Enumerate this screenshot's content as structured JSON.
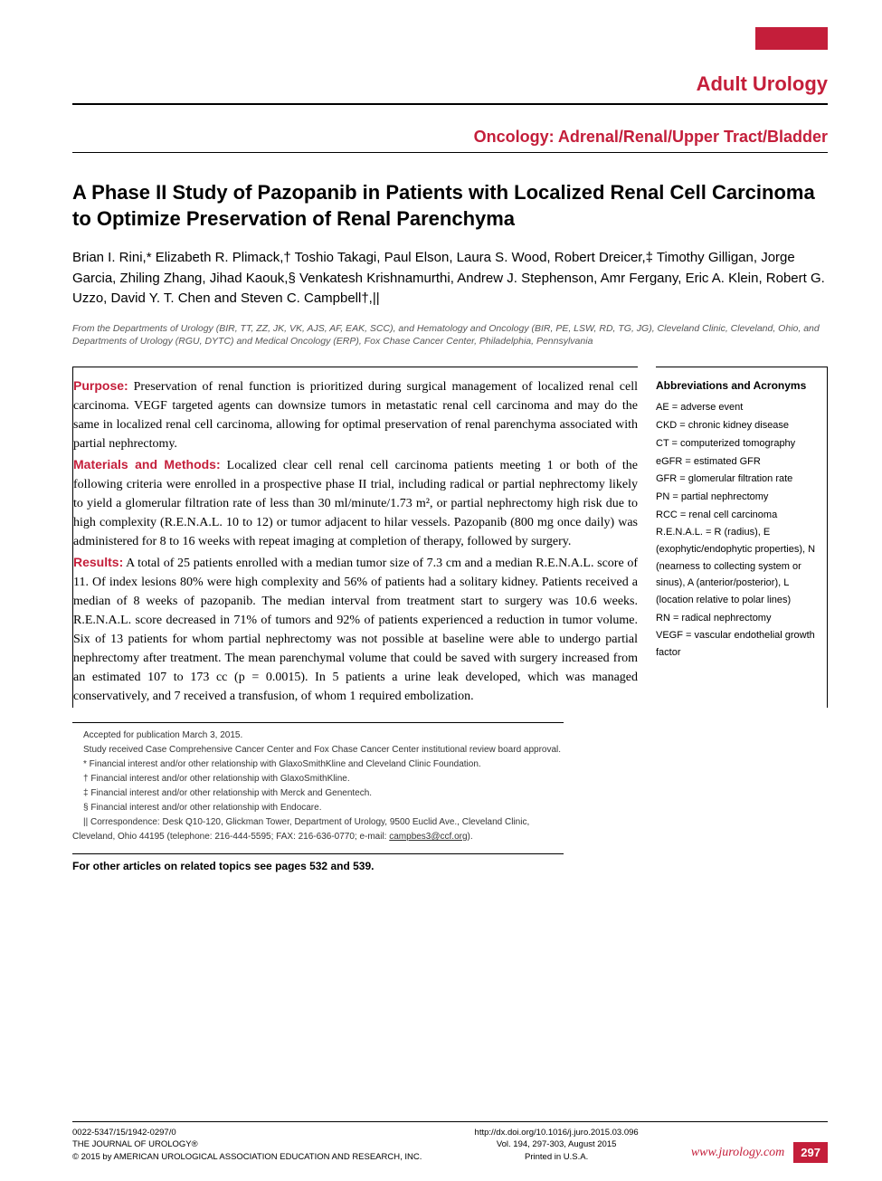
{
  "colors": {
    "accent": "#c41e3a",
    "text": "#000000",
    "footnote_text": "#333333",
    "affiliation_text": "#555555",
    "background": "#ffffff"
  },
  "typography": {
    "body_font": "Arial, Helvetica, sans-serif",
    "serif_font": "Georgia, 'Times New Roman', serif",
    "title_size_pt": 22,
    "abstract_size_pt": 14,
    "sidebar_size_pt": 11,
    "footnote_size_pt": 10
  },
  "header": {
    "section": "Adult Urology",
    "subsection": "Oncology: Adrenal/Renal/Upper Tract/Bladder"
  },
  "article": {
    "title": "A Phase II Study of Pazopanib in Patients with Localized Renal Cell Carcinoma to Optimize Preservation of Renal Parenchyma",
    "authors": "Brian I. Rini,* Elizabeth R. Plimack,† Toshio Takagi, Paul Elson, Laura S. Wood, Robert Dreicer,‡ Timothy Gilligan, Jorge Garcia, Zhiling Zhang, Jihad Kaouk,§ Venkatesh Krishnamurthi, Andrew J. Stephenson, Amr Fergany, Eric A. Klein, Robert G. Uzzo, David Y. T. Chen and Steven C. Campbell†,||",
    "affiliation": "From the Departments of Urology (BIR, TT, ZZ, JK, VK, AJS, AF, EAK, SCC), and Hematology and Oncology (BIR, PE, LSW, RD, TG, JG), Cleveland Clinic, Cleveland, Ohio, and Departments of Urology (RGU, DYTC) and Medical Oncology (ERP), Fox Chase Cancer Center, Philadelphia, Pennsylvania"
  },
  "abstract": {
    "purpose_label": "Purpose:",
    "purpose": " Preservation of renal function is prioritized during surgical management of localized renal cell carcinoma. VEGF targeted agents can downsize tumors in metastatic renal cell carcinoma and may do the same in localized renal cell carcinoma, allowing for optimal preservation of renal parenchyma associated with partial nephrectomy.",
    "methods_label": "Materials and Methods:",
    "methods": " Localized clear cell renal cell carcinoma patients meeting 1 or both of the following criteria were enrolled in a prospective phase II trial, including radical or partial nephrectomy likely to yield a glomerular filtration rate of less than 30 ml/minute/1.73 m², or partial nephrectomy high risk due to high complexity (R.E.N.A.L. 10 to 12) or tumor adjacent to hilar vessels. Pazopanib (800 mg once daily) was administered for 8 to 16 weeks with repeat imaging at completion of therapy, followed by surgery.",
    "results_label": "Results:",
    "results": " A total of 25 patients enrolled with a median tumor size of 7.3 cm and a median R.E.N.A.L. score of 11. Of index lesions 80% were high complexity and 56% of patients had a solitary kidney. Patients received a median of 8 weeks of pazopanib. The median interval from treatment start to surgery was 10.6 weeks. R.E.N.A.L. score decreased in 71% of tumors and 92% of patients experienced a reduction in tumor volume. Six of 13 patients for whom partial nephrectomy was not possible at baseline were able to undergo partial nephrectomy after treatment. The mean parenchymal volume that could be saved with surgery increased from an estimated 107 to 173 cc (p = 0.0015). In 5 patients a urine leak developed, which was managed conservatively, and 7 received a transfusion, of whom 1 required embolization."
  },
  "sidebar": {
    "title": "Abbreviations and Acronyms",
    "items": [
      "AE = adverse event",
      "CKD = chronic kidney disease",
      "CT = computerized tomography",
      "eGFR = estimated GFR",
      "GFR = glomerular filtration rate",
      "PN = partial nephrectomy",
      "RCC = renal cell carcinoma",
      "R.E.N.A.L. = R (radius), E (exophytic/endophytic properties), N (nearness to collecting system or sinus), A (anterior/posterior), L (location relative to polar lines)",
      "RN = radical nephrectomy",
      "VEGF = vascular endothelial growth factor"
    ]
  },
  "footnotes": {
    "lines": [
      "Accepted for publication March 3, 2015.",
      "Study received Case Comprehensive Cancer Center and Fox Chase Cancer Center institutional review board approval.",
      "* Financial interest and/or other relationship with GlaxoSmithKline and Cleveland Clinic Foundation.",
      "† Financial interest and/or other relationship with GlaxoSmithKline.",
      "‡ Financial interest and/or other relationship with Merck and Genentech.",
      "§ Financial interest and/or other relationship with Endocare."
    ],
    "correspondence_prefix": "|| Correspondence: Desk Q10-120, Glickman Tower, Department of Urology, 9500 Euclid Ave., Cleveland Clinic, Cleveland, Ohio 44195 (telephone: 216-444-5595; FAX: 216-636-0770; e-mail: ",
    "correspondence_email": "campbes3@ccf.org",
    "correspondence_suffix": ")."
  },
  "related": "For other articles on related topics see pages 532 and 539.",
  "footer": {
    "left_line1": "0022-5347/15/1942-0297/0",
    "left_line2": "THE JOURNAL OF UROLOGY®",
    "left_line3": "© 2015 by AMERICAN UROLOGICAL ASSOCIATION EDUCATION AND RESEARCH, INC.",
    "center_line1": "http://dx.doi.org/10.1016/j.juro.2015.03.096",
    "center_line2": "Vol. 194, 297-303, August 2015",
    "center_line3": "Printed in U.S.A.",
    "url": "www.jurology.com",
    "page": "297"
  }
}
